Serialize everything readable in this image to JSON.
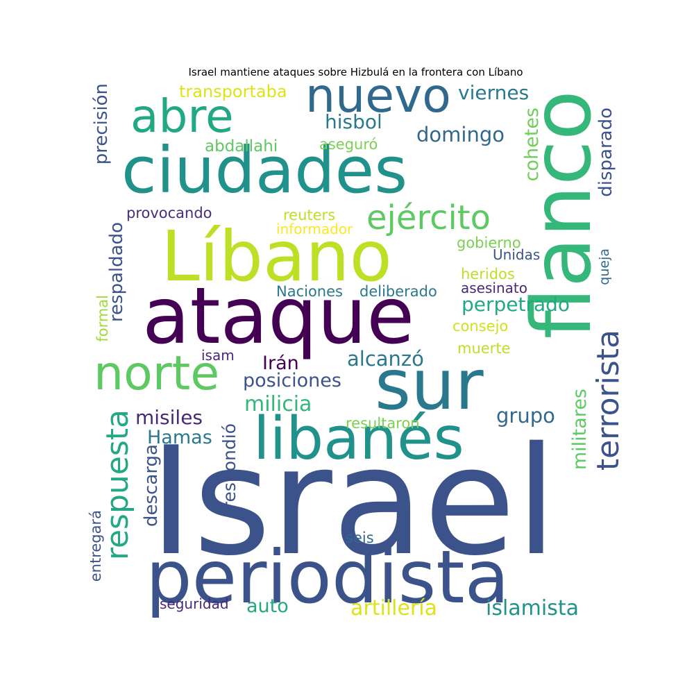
{
  "title": "Israel mantiene ataques sobre Hizbulá en la frontera con Líbano",
  "words": [
    {
      "text": "Israel",
      "color": "#3b528b"
    },
    {
      "text": "Líbano",
      "color": "#bddf26"
    },
    {
      "text": "ciudades",
      "color": "#21918c"
    },
    {
      "text": "ataque",
      "color": "#440154"
    },
    {
      "text": "flanco",
      "color": "#35b779"
    },
    {
      "text": "sur",
      "color": "#2a788e"
    },
    {
      "text": "periodista",
      "color": "#3b528b"
    },
    {
      "text": "libanés",
      "color": "#21918c"
    },
    {
      "text": "norte",
      "color": "#5ec962"
    },
    {
      "text": "nuevo",
      "color": "#31688e"
    },
    {
      "text": "abre",
      "color": "#22a884"
    },
    {
      "text": "ejército",
      "color": "#5ec962"
    },
    {
      "text": "terrorista",
      "color": "#3b528b"
    },
    {
      "text": "respuesta",
      "color": "#22a884"
    },
    {
      "text": "precisión",
      "color": "#3b528b"
    },
    {
      "text": "disparado",
      "color": "#3b528b"
    },
    {
      "text": "cohetes",
      "color": "#6ece58"
    },
    {
      "text": "respaldado",
      "color": "#3b528b"
    },
    {
      "text": "perpetrado",
      "color": "#22a884"
    },
    {
      "text": "posiciones",
      "color": "#3b528b"
    },
    {
      "text": "milicia",
      "color": "#35b779"
    },
    {
      "text": "alcanzó",
      "color": "#2a788e"
    },
    {
      "text": "misiles",
      "color": "#482878"
    },
    {
      "text": "grupo",
      "color": "#31688e"
    },
    {
      "text": "Hamas",
      "color": "#2a788e"
    },
    {
      "text": "descarga",
      "color": "#3b528b"
    },
    {
      "text": "respondió",
      "color": "#3b528b"
    },
    {
      "text": "militares",
      "color": "#5ec962"
    },
    {
      "text": "hisbol",
      "color": "#2a788e"
    },
    {
      "text": "domingo",
      "color": "#31688e"
    },
    {
      "text": "viernes",
      "color": "#2a788e"
    },
    {
      "text": "transportaba",
      "color": "#dde318"
    },
    {
      "text": "abdallahi",
      "color": "#5ec962"
    },
    {
      "text": "aseguró",
      "color": "#7ad151"
    },
    {
      "text": "provocando",
      "color": "#472d7b"
    },
    {
      "text": "reuters",
      "color": "#bddf26"
    },
    {
      "text": "informador",
      "color": "#fde725"
    },
    {
      "text": "gobierno",
      "color": "#7ad151"
    },
    {
      "text": "Unidas",
      "color": "#3b528b"
    },
    {
      "text": "heridos",
      "color": "#bddf26"
    },
    {
      "text": "asesinato",
      "color": "#482878"
    },
    {
      "text": "Naciones",
      "color": "#2a788e"
    },
    {
      "text": "deliberado",
      "color": "#2a788e"
    },
    {
      "text": "queja",
      "color": "#31688e"
    },
    {
      "text": "consejo",
      "color": "#d0e11c"
    },
    {
      "text": "muerte",
      "color": "#bddf26"
    },
    {
      "text": "formal",
      "color": "#a0da39"
    },
    {
      "text": "isam",
      "color": "#482878"
    },
    {
      "text": "Irán",
      "color": "#440154"
    },
    {
      "text": "resultaron",
      "color": "#7ad151"
    },
    {
      "text": "seis",
      "color": "#31688e"
    },
    {
      "text": "entregará",
      "color": "#3b528b"
    },
    {
      "text": "auto",
      "color": "#22a884"
    },
    {
      "text": "artillería",
      "color": "#dde318"
    },
    {
      "text": "islamista",
      "color": "#21918c"
    },
    {
      "text": "seguridad",
      "color": "#482878"
    }
  ]
}
